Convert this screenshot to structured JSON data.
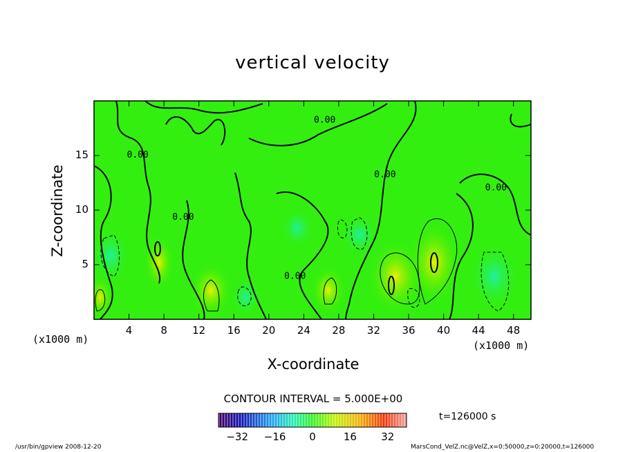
{
  "chart_data": {
    "type": "heatmap",
    "title": "vertical velocity",
    "xlabel": "X-coordinate",
    "ylabel": "Z-coordinate",
    "x_unit": "(x1000 m)",
    "y_unit": "(x1000 m)",
    "xlim": [
      0,
      50
    ],
    "ylim": [
      0,
      20
    ],
    "x_ticks": [
      "4",
      "8",
      "12",
      "16",
      "20",
      "24",
      "28",
      "32",
      "36",
      "40",
      "44",
      "48"
    ],
    "y_ticks": [
      "5",
      "10",
      "15"
    ],
    "x_tick_values": [
      4,
      8,
      12,
      16,
      20,
      24,
      28,
      32,
      36,
      40,
      44,
      48
    ],
    "y_tick_values": [
      5,
      10,
      15
    ],
    "contour_interval_label": "CONTOUR INTERVAL = 5.000E+00",
    "contour_labels": [
      {
        "text": "0.00",
        "x": 5.0,
        "y": 14.8
      },
      {
        "text": "0.00",
        "x": 10.2,
        "y": 9.1
      },
      {
        "text": "0.00",
        "x": 26.4,
        "y": 18.0
      },
      {
        "text": "0.00",
        "x": 33.3,
        "y": 13.0
      },
      {
        "text": "0.00",
        "x": 46.0,
        "y": 11.8
      },
      {
        "text": "0.00",
        "x": 23.0,
        "y": 3.7
      }
    ],
    "colorbar": {
      "range": [
        -40,
        40
      ],
      "ticks": [
        "−32",
        "−16",
        "0",
        "16",
        "32"
      ],
      "tick_values": [
        -32,
        -16,
        0,
        16,
        32
      ]
    },
    "time_label": "t=126000  s"
  },
  "footer": {
    "left": "/usr/bin/gpview   2008-12-20",
    "right": "MarsCond_VelZ.nc@VelZ,x=0:50000,z=0:20000,t=126000"
  }
}
